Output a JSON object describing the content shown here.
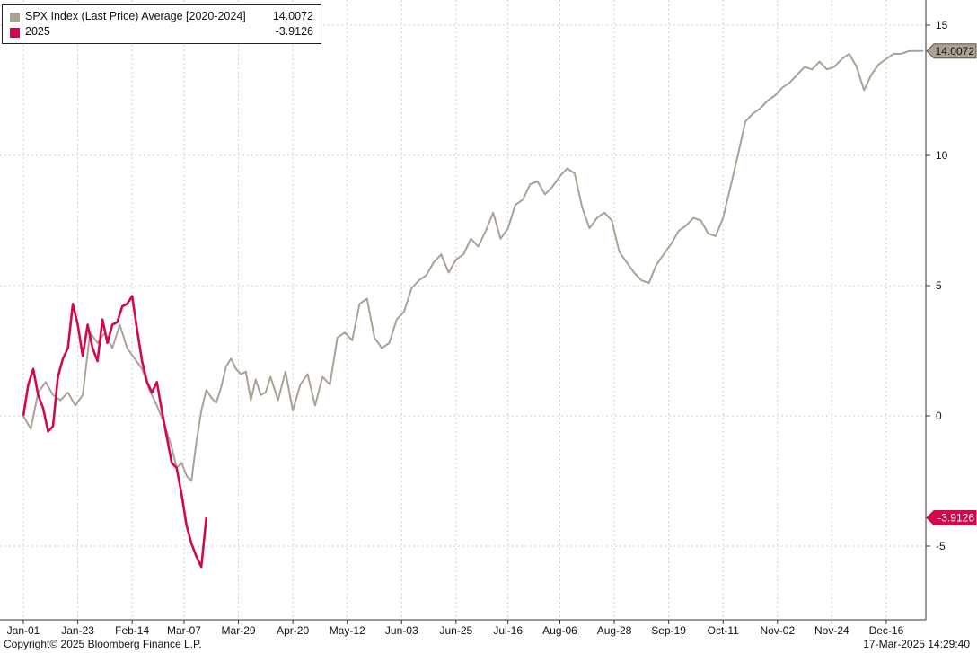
{
  "chart_data": {
    "type": "line",
    "title": "",
    "xlabel": "",
    "ylabel": "",
    "ylim": [
      -7.5,
      16
    ],
    "yticks": [
      15,
      10,
      5,
      0,
      -5
    ],
    "x_tick_labels": [
      "Jan-01",
      "Jan-23",
      "Feb-14",
      "Mar-07",
      "Mar-29",
      "Apr-20",
      "May-12",
      "Jun-03",
      "Jun-25",
      "Jul-16",
      "Aug-06",
      "Aug-28",
      "Sep-19",
      "Oct-11",
      "Nov-02",
      "Nov-24",
      "Dec-16"
    ],
    "x_tick_days": [
      0,
      22,
      44,
      65,
      87,
      109,
      131,
      153,
      175,
      196,
      217,
      239,
      261,
      283,
      305,
      327,
      349
    ],
    "xlim": [
      0,
      365
    ],
    "grid": true,
    "legend_position": "top-left",
    "series": [
      {
        "name": "SPX Index (Last Price) Average [2020-2024]",
        "color": "#aba194",
        "last_value": "14.0072",
        "x": [
          0,
          3,
          6,
          9,
          12,
          15,
          18,
          21,
          24,
          27,
          30,
          33,
          36,
          39,
          42,
          45,
          48,
          51,
          54,
          57,
          60,
          62,
          64,
          66,
          68,
          70,
          72,
          74,
          76,
          78,
          80,
          82,
          84,
          86,
          88,
          90,
          92,
          94,
          96,
          98,
          100,
          103,
          106,
          109,
          112,
          115,
          118,
          121,
          124,
          127,
          130,
          133,
          136,
          139,
          142,
          145,
          148,
          151,
          154,
          157,
          160,
          163,
          166,
          169,
          172,
          175,
          178,
          181,
          184,
          187,
          190,
          193,
          196,
          199,
          202,
          205,
          208,
          211,
          214,
          217,
          220,
          223,
          226,
          229,
          232,
          235,
          238,
          241,
          244,
          247,
          250,
          253,
          256,
          259,
          262,
          265,
          268,
          271,
          274,
          277,
          280,
          283,
          286,
          289,
          292,
          295,
          298,
          301,
          304,
          307,
          310,
          313,
          316,
          319,
          322,
          325,
          328,
          331,
          334,
          337,
          340,
          343,
          346,
          349,
          352,
          355,
          358,
          361,
          364
        ],
        "y": [
          0.0,
          -0.5,
          0.9,
          1.3,
          0.8,
          0.6,
          0.9,
          0.4,
          0.8,
          3.2,
          2.8,
          3.2,
          2.6,
          3.5,
          2.6,
          2.2,
          1.8,
          1.0,
          0.4,
          -0.3,
          -1.2,
          -2.0,
          -1.8,
          -2.3,
          -2.5,
          -1.0,
          0.2,
          1.0,
          0.7,
          0.5,
          1.1,
          1.9,
          2.2,
          1.8,
          1.6,
          1.7,
          0.6,
          1.4,
          0.8,
          0.9,
          1.5,
          0.6,
          1.7,
          0.2,
          1.2,
          1.6,
          0.4,
          1.5,
          1.2,
          3.0,
          3.2,
          2.9,
          4.3,
          4.5,
          3.0,
          2.6,
          2.8,
          3.7,
          4.0,
          4.9,
          5.2,
          5.4,
          5.9,
          6.2,
          5.5,
          6.0,
          6.2,
          6.8,
          6.5,
          7.1,
          7.8,
          6.8,
          7.2,
          8.1,
          8.3,
          8.9,
          9.0,
          8.5,
          8.8,
          9.2,
          9.5,
          9.3,
          8.0,
          7.2,
          7.6,
          7.8,
          7.5,
          6.3,
          5.9,
          5.5,
          5.2,
          5.1,
          5.8,
          6.2,
          6.6,
          7.1,
          7.3,
          7.6,
          7.5,
          7.0,
          6.9,
          7.6,
          8.8,
          10.0,
          11.3,
          11.6,
          11.8,
          12.1,
          12.3,
          12.6,
          12.8,
          13.1,
          13.4,
          13.3,
          13.6,
          13.3,
          13.4,
          13.7,
          13.9,
          13.4,
          12.5,
          13.1,
          13.5,
          13.7,
          13.9,
          13.9,
          14.0,
          14.01,
          14.0072
        ]
      },
      {
        "name": "2025",
        "color": "#d1094c",
        "last_value": "-3.9126",
        "x": [
          0,
          2,
          4,
          6,
          8,
          10,
          12,
          14,
          16,
          18,
          20,
          22,
          24,
          26,
          28,
          30,
          32,
          34,
          36,
          38,
          40,
          42,
          44,
          46,
          48,
          50,
          52,
          54,
          56,
          58,
          60,
          62,
          64,
          66,
          68,
          70,
          72,
          74
        ],
        "y": [
          0.0,
          1.2,
          1.8,
          0.8,
          0.3,
          -0.6,
          -0.4,
          1.5,
          2.2,
          2.6,
          4.3,
          3.5,
          2.3,
          3.5,
          2.6,
          2.1,
          3.7,
          2.8,
          3.5,
          3.6,
          4.2,
          4.3,
          4.6,
          3.3,
          2.1,
          1.3,
          0.9,
          1.3,
          0.2,
          -0.8,
          -1.8,
          -2.0,
          -3.0,
          -4.2,
          -4.9,
          -5.4,
          -5.8,
          -3.9
        ]
      }
    ]
  },
  "legend": {
    "items": [
      {
        "label": "SPX Index (Last Price) Average [2020-2024]",
        "value": "14.0072",
        "color": "#aba194"
      },
      {
        "label": "2025",
        "value": "-3.9126",
        "color": "#d1094c"
      }
    ]
  },
  "footer": {
    "copyright": "Copyright© 2025 Bloomberg Finance L.P.",
    "timestamp": "17-Mar-2025 14:29:40"
  }
}
